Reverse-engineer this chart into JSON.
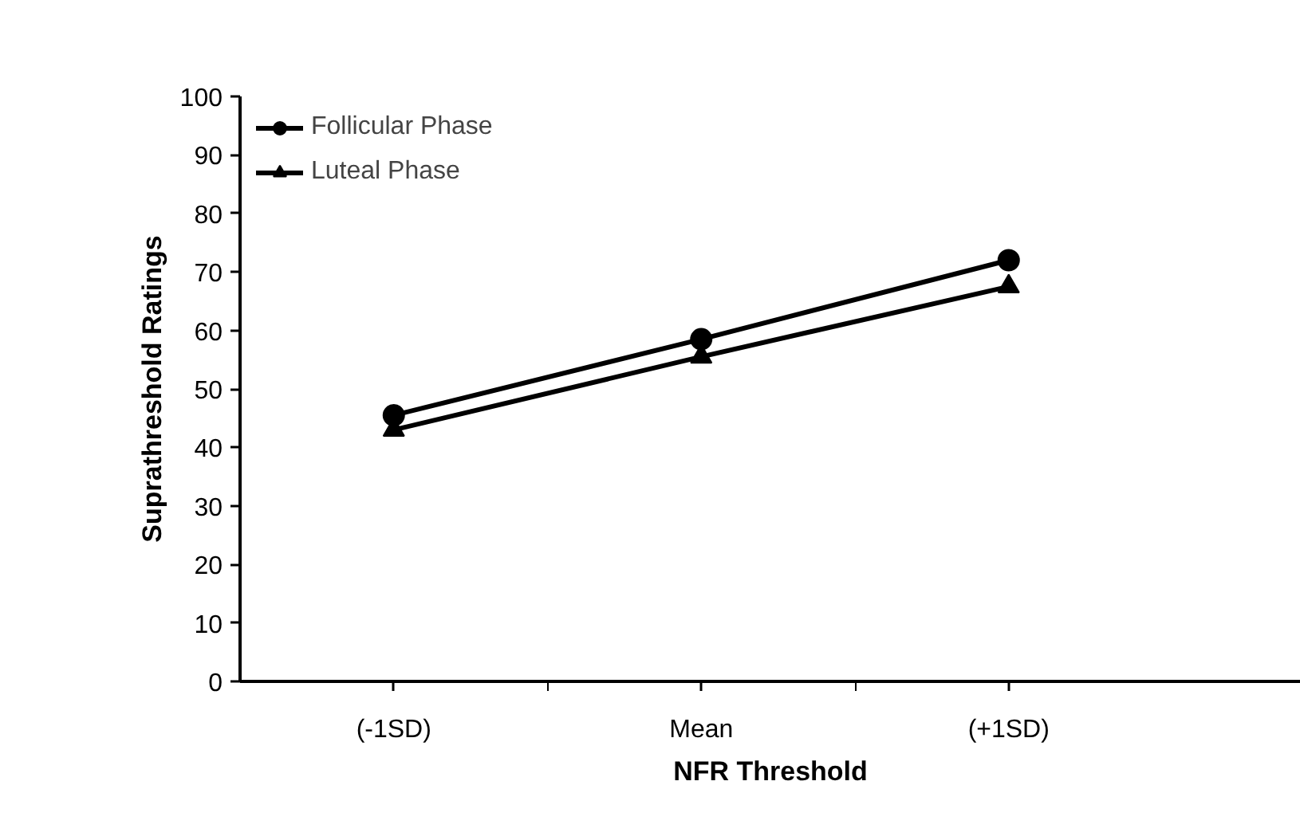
{
  "chart_data": {
    "type": "line",
    "xlabel": "NFR Threshold",
    "ylabel": "Suprathreshold Ratings",
    "categories": [
      "(-1SD)",
      "Mean",
      "(+1SD)"
    ],
    "series": [
      {
        "name": "Follicular Phase",
        "color": "#000000",
        "marker": "circle",
        "values": [
          45.5,
          58.5,
          72
        ]
      },
      {
        "name": "Luteal Phase",
        "color": "#000000",
        "marker": "triangle",
        "values": [
          43,
          55.5,
          67.5
        ]
      }
    ],
    "ylim": [
      0,
      100
    ],
    "yticks": [
      0,
      10,
      20,
      30,
      40,
      50,
      60,
      70,
      80,
      90,
      100
    ],
    "grid": false,
    "legend": "top left",
    "line_style": "solid"
  }
}
